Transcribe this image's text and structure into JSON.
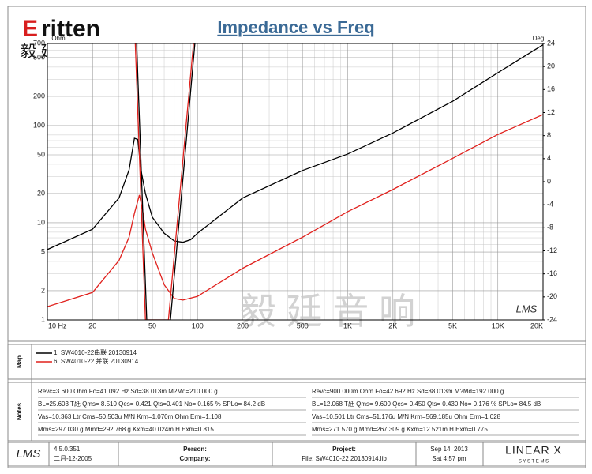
{
  "chart_data": {
    "type": "line",
    "title": "Impedance vs Freq",
    "y_label": "Ohm",
    "y2_label": "Deg",
    "xscale": "log",
    "yscale": "log",
    "grid": true,
    "xlim": [
      10,
      20000
    ],
    "ylim": [
      1,
      700
    ],
    "y2lim": [
      -24,
      24
    ],
    "xticks": [
      {
        "value": 10,
        "label": "10 Hz"
      },
      20,
      50,
      100,
      200,
      500,
      {
        "value": 1000,
        "label": "1K"
      },
      {
        "value": 2000,
        "label": "2K"
      },
      {
        "value": 5000,
        "label": "5K"
      },
      {
        "value": 10000,
        "label": "10K"
      },
      {
        "value": 20000,
        "label": "20K"
      }
    ],
    "xminor": [
      30,
      40,
      60,
      70,
      80,
      90,
      300,
      400,
      600,
      700,
      800,
      900,
      3000,
      4000,
      6000,
      7000,
      8000,
      9000
    ],
    "yticks": [
      1,
      2,
      5,
      10,
      20,
      50,
      100,
      200,
      500,
      700
    ],
    "yminor": [
      3,
      4,
      6,
      7,
      8,
      9,
      30,
      40,
      60,
      70,
      80,
      90,
      300,
      400,
      600
    ],
    "y2ticks": [
      -24,
      -20,
      -16,
      -12,
      -8,
      -4,
      0,
      4,
      8,
      12,
      16,
      20,
      24
    ],
    "series": [
      {
        "name": "1: SW4010-22串联 20130914",
        "color": "#000000",
        "x": [
          10,
          20,
          30,
          35,
          38,
          40,
          42,
          45,
          50,
          60,
          70,
          80,
          90,
          100,
          200,
          500,
          1000,
          2000,
          5000,
          10000,
          20000
        ],
        "values": [
          5.3,
          8.6,
          18,
          35,
          74,
          72,
          35,
          20,
          11.4,
          7.8,
          6.5,
          6.3,
          6.7,
          7.8,
          18,
          34.5,
          51,
          84,
          178,
          350,
          680
        ]
      },
      {
        "name": "6: SW4010-22 并联 20130914",
        "color": "#e0201c",
        "x": [
          10,
          20,
          30,
          35,
          38,
          41,
          43,
          45,
          50,
          60,
          70,
          80,
          100,
          200,
          500,
          1000,
          2000,
          5000,
          10000,
          20000
        ],
        "values": [
          1.37,
          1.92,
          4.1,
          7.1,
          12.5,
          19.3,
          13.7,
          8.6,
          4.9,
          2.3,
          1.66,
          1.6,
          1.75,
          3.4,
          7.1,
          13,
          22,
          46,
          81,
          130
        ]
      },
      {
        "color": "#000000",
        "axis": "y2",
        "x": [
          39.3,
          45.9,
          66,
          96
        ],
        "values": [
          24,
          -24,
          -24,
          24
        ]
      },
      {
        "color": "#e0201c",
        "axis": "y2",
        "x": [
          38.5,
          45,
          64,
          94
        ],
        "values": [
          24,
          -24,
          -24,
          24
        ]
      }
    ]
  },
  "logo": {
    "brand": "ritten",
    "initial": "E",
    "chinese": "毅 廷 音 响",
    "watermark": "毅 廷 音 响",
    "lms": "LMS"
  },
  "sections": {
    "map": "Map",
    "notes": "Notes"
  },
  "notes": {
    "left": [
      "Revc=3.600 Ohm  Fo=41.092 Hz  Sd=38.013m  M?Md=210.000 g",
      "BL=25.603 T瓩  Qms= 8.510  Qes= 0.421  Qts=0.401  No= 0.165 %  SPLo= 84.2 dB",
      "Vas=10.363 Ltr  Cms=50.503u M/N  Krm=1.070m Ohm  Erm=1.108",
      "Mms=297.030 g  Mmd=292.768 g  Kxm=40.024m H  Exm=0.815"
    ],
    "right": [
      "Revc=900.000m Ohm  Fo=42.692 Hz  Sd=38.013m  M?Md=192.000 g",
      "BL=12.068 T瓩  Qms= 9.600  Qes= 0.450  Qts= 0.430  No= 0.176 %  SPLo= 84.5 dB",
      "Vas=10.501 Ltr  Cms=51.176u M/N  Krm=569.185u Ohm  Erm=1.028",
      "Mms=271.570 g  Mmd=267.309 g  Kxm=12.521m H  Exm=0.775"
    ]
  },
  "footer": {
    "logo": "LMS",
    "version": "4.5.0.351",
    "build_date": "二月-12-2005",
    "person": "Person:",
    "company": "Company:",
    "project": "Project:",
    "file": "File:  SW4010-22  20130914.lib",
    "date": "Sep 14, 2013",
    "time": "Sat  4:57 pm",
    "vendor": "LINEAR X",
    "vendor_sub": "S Y S T E M S"
  }
}
